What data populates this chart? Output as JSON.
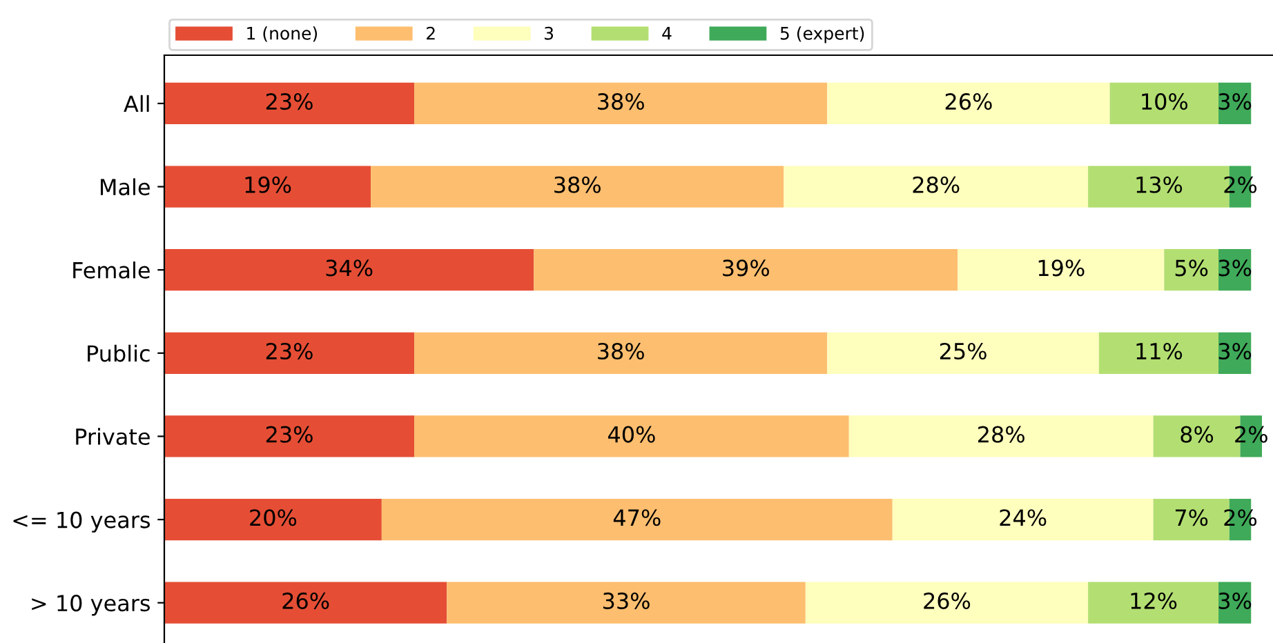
{
  "chart_data": {
    "type": "bar",
    "orientation": "horizontal",
    "stacked": true,
    "legend": "top",
    "grid": false,
    "categories": [
      "All",
      "Male",
      "Female",
      "Public",
      "Private",
      "<= 10 years",
      "> 10 years"
    ],
    "series": [
      {
        "name": "1 (none)",
        "color": "#e54e35",
        "values": [
          23,
          19,
          34,
          23,
          23,
          20,
          26
        ],
        "value_labels": [
          "23%",
          "19%",
          "34%",
          "23%",
          "23%",
          "20%",
          "26%"
        ]
      },
      {
        "name": "2",
        "color": "#fdbe6f",
        "values": [
          38,
          38,
          39,
          38,
          40,
          47,
          33
        ],
        "value_labels": [
          "38%",
          "38%",
          "39%",
          "38%",
          "40%",
          "47%",
          "33%"
        ]
      },
      {
        "name": "3",
        "color": "#fefebd",
        "values": [
          26,
          28,
          19,
          25,
          28,
          24,
          26
        ],
        "value_labels": [
          "26%",
          "28%",
          "19%",
          "25%",
          "28%",
          "24%",
          "26%"
        ]
      },
      {
        "name": "4",
        "color": "#b3df72",
        "values": [
          10,
          13,
          5,
          11,
          8,
          7,
          12
        ],
        "value_labels": [
          "10%",
          "13%",
          "5%",
          "11%",
          "8%",
          "7%",
          "12%"
        ]
      },
      {
        "name": "5 (expert)",
        "color": "#3faa59",
        "values": [
          3,
          2,
          3,
          3,
          2,
          2,
          3
        ],
        "value_labels": [
          "3%",
          "2%",
          "3%",
          "3%",
          "2%",
          "2%",
          "3%"
        ]
      }
    ]
  }
}
